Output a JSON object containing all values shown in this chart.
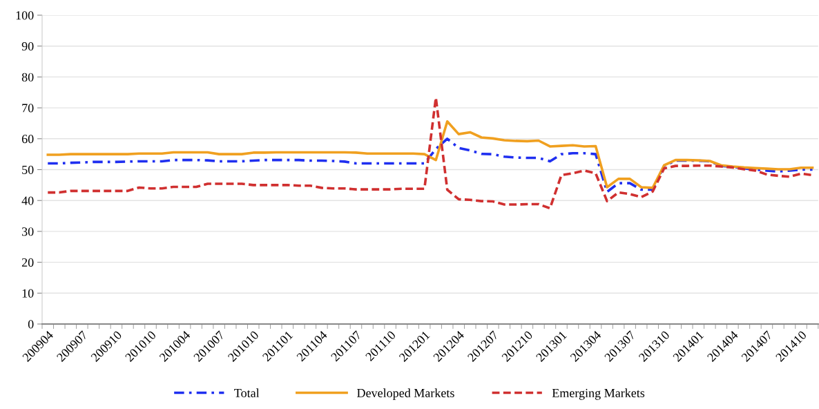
{
  "chart_data": {
    "type": "line",
    "categories": [
      "200904",
      null,
      null,
      "200907",
      null,
      null,
      "200910",
      null,
      null,
      "201010",
      null,
      null,
      "201004",
      null,
      null,
      "201007",
      null,
      null,
      "201010",
      null,
      null,
      "201101",
      null,
      null,
      "201104",
      null,
      null,
      "201107",
      null,
      null,
      "201110",
      null,
      null,
      "201201",
      null,
      null,
      "201204",
      null,
      null,
      "201207",
      null,
      null,
      "201210",
      null,
      null,
      "201301",
      null,
      null,
      "201304",
      null,
      null,
      "201307",
      null,
      null,
      "201310",
      null,
      null,
      "201401",
      null,
      null,
      "201404",
      null,
      null,
      "201407",
      null,
      null,
      "201410",
      null
    ],
    "series": [
      {
        "name": "Total",
        "color": "#1f2ff0",
        "line_style": "dashdot",
        "values": [
          52.0,
          52.0,
          52.2,
          52.3,
          52.5,
          52.5,
          52.5,
          52.6,
          52.7,
          52.7,
          52.7,
          53.1,
          53.1,
          53.1,
          53.0,
          52.7,
          52.7,
          52.7,
          52.9,
          53.1,
          53.1,
          53.1,
          53.1,
          52.9,
          52.9,
          52.8,
          52.6,
          52.0,
          52.0,
          52.0,
          52.0,
          52.0,
          52.0,
          52.0,
          56.7,
          60.0,
          57.0,
          56.2,
          55.1,
          55.0,
          54.2,
          53.9,
          53.8,
          53.8,
          52.7,
          55.0,
          55.3,
          55.3,
          55.0,
          42.8,
          45.6,
          45.6,
          43.5,
          43.5,
          51.2,
          52.9,
          52.9,
          52.9,
          52.7,
          51.2,
          50.9,
          50.4,
          50.0,
          49.7,
          49.4,
          49.7,
          50.0,
          50.0
        ]
      },
      {
        "name": "Developed Markets",
        "color": "#f0a020",
        "line_style": "solid",
        "values": [
          54.8,
          54.8,
          55.0,
          55.0,
          55.0,
          55.0,
          55.0,
          55.0,
          55.2,
          55.2,
          55.2,
          55.6,
          55.6,
          55.6,
          55.6,
          55.0,
          55.0,
          55.0,
          55.5,
          55.5,
          55.6,
          55.6,
          55.6,
          55.6,
          55.6,
          55.6,
          55.6,
          55.5,
          55.2,
          55.2,
          55.2,
          55.2,
          55.2,
          55.0,
          53.1,
          65.6,
          61.5,
          62.1,
          60.4,
          60.1,
          59.5,
          59.3,
          59.2,
          59.4,
          57.5,
          57.7,
          57.9,
          57.5,
          57.6,
          44.3,
          47.0,
          47.0,
          44.3,
          44.1,
          51.4,
          53.1,
          53.1,
          53.0,
          52.8,
          51.4,
          51.0,
          50.7,
          50.5,
          50.3,
          50.1,
          50.1,
          50.6,
          50.6
        ]
      },
      {
        "name": "Emerging Markets",
        "color": "#d03030",
        "line_style": "dashed",
        "values": [
          42.6,
          42.6,
          43.1,
          43.1,
          43.1,
          43.1,
          43.1,
          43.1,
          44.2,
          43.9,
          43.9,
          44.4,
          44.4,
          44.4,
          45.4,
          45.4,
          45.4,
          45.4,
          45.0,
          45.0,
          45.0,
          45.0,
          44.8,
          44.8,
          44.1,
          43.9,
          43.9,
          43.6,
          43.6,
          43.6,
          43.6,
          43.8,
          43.8,
          43.8,
          73.3,
          43.5,
          40.4,
          40.2,
          39.8,
          39.7,
          38.7,
          38.7,
          38.8,
          38.8,
          37.5,
          48.2,
          48.8,
          49.7,
          48.8,
          39.8,
          42.6,
          42.1,
          41.1,
          42.9,
          50.4,
          51.2,
          51.2,
          51.3,
          51.3,
          51.0,
          50.7,
          50.1,
          49.7,
          48.4,
          48.0,
          47.7,
          48.7,
          48.2
        ]
      }
    ],
    "ylim": [
      0,
      100
    ],
    "yticks": [
      0,
      10,
      20,
      30,
      40,
      50,
      60,
      70,
      80,
      90,
      100
    ],
    "grid": "y",
    "legend": "bottom",
    "marker": "none"
  }
}
